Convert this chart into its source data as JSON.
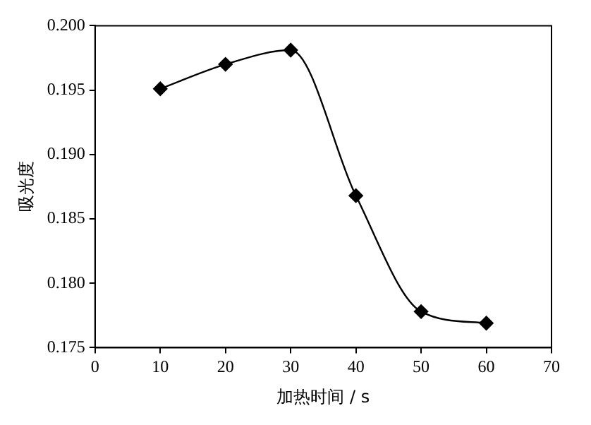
{
  "chart_data": {
    "type": "line",
    "xlabel": "加热时间 / s",
    "ylabel": "吸光度",
    "x": [
      10,
      20,
      30,
      40,
      50,
      60
    ],
    "series": [
      {
        "color": "#000000",
        "values": [
          0.1951,
          0.197,
          0.1981,
          0.1868,
          0.1778,
          0.1769
        ]
      }
    ],
    "xlim": [
      0,
      70
    ],
    "xticks": [
      0,
      10,
      20,
      30,
      40,
      50,
      60,
      70
    ],
    "ylim": [
      0.175,
      0.2
    ],
    "yticks": [
      0.175,
      {
        "value": 0.18,
        "label": "0.180"
      },
      0.185,
      {
        "value": 0.19,
        "label": "0.190"
      },
      0.195,
      {
        "value": 0.2,
        "label": "0.200"
      }
    ],
    "marker": "diamond",
    "line_style": "solid",
    "grid": false,
    "legend": false
  }
}
